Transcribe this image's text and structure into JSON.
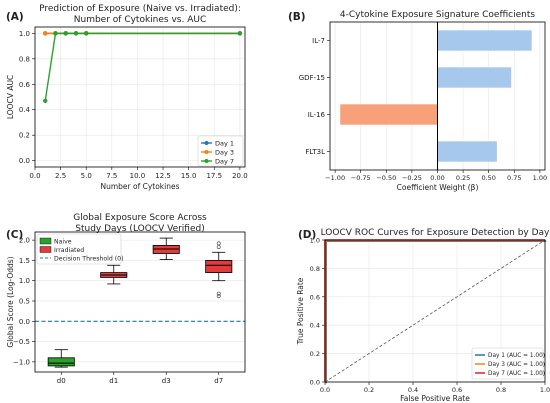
{
  "colors": {
    "day1": "#1f77b4",
    "day3": "#ff7f0e",
    "day7": "#2ca02c",
    "bar_positive": "#a6c8ec",
    "bar_negative": "#f7a07a",
    "naive": "#2ca02c",
    "irradiated": "#e03c3c",
    "threshold": "#1f77b4",
    "roc_day1": "#1f77b4",
    "roc_day3": "#ff7f0e",
    "roc_day7": "#d62728",
    "diagonal": "#555555"
  },
  "chart_data": [
    {
      "panel_label": "(A)",
      "type": "line",
      "title": "Prediction of Exposure (Naive vs. Irradiated):\nNumber of Cytokines vs. AUC",
      "xlabel": "Number of Cytokines",
      "ylabel": "LOOCV AUC",
      "xlim": [
        0,
        20.5
      ],
      "ylim": [
        -0.05,
        1.05
      ],
      "xticks": [
        "0.0",
        "2.5",
        "5.0",
        "7.5",
        "10.0",
        "12.5",
        "15.0",
        "17.5",
        "20.0"
      ],
      "yticks": [
        "0.0",
        "0.2",
        "0.4",
        "0.6",
        "0.8",
        "1.0"
      ],
      "grid": true,
      "legend_position": "lower-right",
      "series": [
        {
          "name": "Day 1",
          "x": [
            1,
            2,
            3,
            4,
            5,
            20
          ],
          "y": [
            1.0,
            1.0,
            1.0,
            1.0,
            1.0,
            1.0
          ]
        },
        {
          "name": "Day 3",
          "x": [
            1,
            2,
            3,
            4,
            5,
            20
          ],
          "y": [
            1.0,
            1.0,
            1.0,
            1.0,
            1.0,
            1.0
          ]
        },
        {
          "name": "Day 7",
          "x": [
            1,
            2,
            3,
            4,
            5,
            20
          ],
          "y": [
            0.47,
            1.0,
            1.0,
            1.0,
            1.0,
            1.0
          ]
        }
      ]
    },
    {
      "panel_label": "(B)",
      "type": "bar",
      "orientation": "horizontal",
      "title": "4-Cytokine Exposure Signature Coefficients",
      "xlabel": "Coefficient Weight (β)",
      "ylabel": "",
      "xlim": [
        -1.05,
        1.05
      ],
      "xticks": [
        "−1.00",
        "−0.75",
        "−0.50",
        "−0.25",
        "0.00",
        "0.25",
        "0.50",
        "0.75",
        "1.00"
      ],
      "categories": [
        "IL-7",
        "GDF-15",
        "IL-16",
        "FLT3L"
      ],
      "values": [
        0.92,
        0.72,
        -0.95,
        0.58
      ],
      "grid": true
    },
    {
      "panel_label": "(C)",
      "type": "box",
      "title": "Global Exposure Score Across\nStudy Days (LOOCV Verified)",
      "xlabel": "",
      "ylabel": "Global Score (Log-Odds)",
      "ylim": [
        -1.25,
        2.2
      ],
      "yticks": [
        "−1.0",
        "−0.5",
        "0.0",
        "0.5",
        "1.0",
        "1.5",
        "2.0"
      ],
      "categories": [
        "d0",
        "d1",
        "d3",
        "d7"
      ],
      "legend_position": "top-left",
      "legend": [
        "Naive",
        "Irradiated",
        "Decision Threshold (0)"
      ],
      "threshold": 0,
      "boxes": [
        {
          "category": "d0",
          "group": "Naive",
          "whisker_low": -1.13,
          "q1": -1.1,
          "median": -1.03,
          "q3": -0.9,
          "whisker_high": -0.7,
          "outliers": []
        },
        {
          "category": "d1",
          "group": "Irradiated",
          "whisker_low": 0.92,
          "q1": 1.08,
          "median": 1.14,
          "q3": 1.2,
          "whisker_high": 1.38,
          "outliers": []
        },
        {
          "category": "d3",
          "group": "Irradiated",
          "whisker_low": 1.52,
          "q1": 1.67,
          "median": 1.78,
          "q3": 1.87,
          "whisker_high": 2.05,
          "outliers": []
        },
        {
          "category": "d7",
          "group": "Irradiated",
          "whisker_low": 1.0,
          "q1": 1.2,
          "median": 1.38,
          "q3": 1.5,
          "whisker_high": 1.7,
          "outliers": [
            0.62,
            0.68,
            1.83,
            1.92
          ]
        }
      ],
      "grid": true
    },
    {
      "panel_label": "(D)",
      "type": "line",
      "title": "LOOCV ROC Curves for Exposure Detection by Day",
      "xlabel": "False Positive Rate",
      "ylabel": "True Positive Rate",
      "xlim": [
        0,
        1
      ],
      "ylim": [
        0,
        1
      ],
      "xticks": [
        "0.0",
        "0.2",
        "0.4",
        "0.6",
        "0.8",
        "1.0"
      ],
      "yticks": [
        "0.0",
        "0.2",
        "0.4",
        "0.6",
        "0.8",
        "1.0"
      ],
      "legend_position": "lower-right",
      "series": [
        {
          "name": "Day 1 (AUC = 1.00)",
          "x": [
            0,
            0,
            1
          ],
          "y": [
            0,
            1,
            1
          ]
        },
        {
          "name": "Day 3 (AUC = 1.00)",
          "x": [
            0,
            0,
            1
          ],
          "y": [
            0,
            1,
            1
          ]
        },
        {
          "name": "Day 7 (AUC = 1.00)",
          "x": [
            0,
            0,
            1
          ],
          "y": [
            0,
            1,
            1
          ]
        }
      ],
      "grid": true
    }
  ]
}
